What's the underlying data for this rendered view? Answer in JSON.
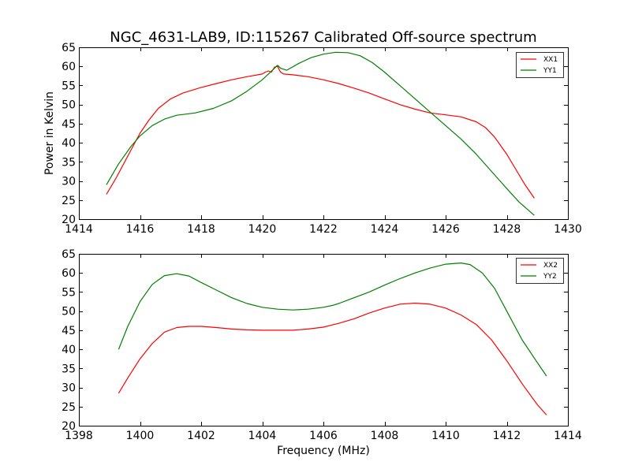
{
  "chart_data": [
    {
      "type": "line",
      "title": "NGC_4631-LAB9, ID:115267 Calibrated Off-source spectrum",
      "xlabel": "",
      "ylabel": "Power in Kelvin",
      "xlim": [
        1414,
        1430
      ],
      "ylim": [
        20,
        65
      ],
      "xticks": [
        1414,
        1416,
        1418,
        1420,
        1422,
        1424,
        1426,
        1428,
        1430
      ],
      "yticks": [
        20,
        25,
        30,
        35,
        40,
        45,
        50,
        55,
        60,
        65
      ],
      "legend_position": "top-right",
      "grid": false,
      "series": [
        {
          "name": "XX1",
          "color": "#ff0000",
          "x": [
            1414.9,
            1415.2,
            1415.5,
            1415.8,
            1416.0,
            1416.3,
            1416.6,
            1417.0,
            1417.4,
            1418.0,
            1418.5,
            1419.0,
            1419.5,
            1420.0,
            1420.1,
            1420.2,
            1420.3,
            1420.4,
            1420.5,
            1420.6,
            1420.7,
            1421.0,
            1421.5,
            1422.0,
            1422.5,
            1423.0,
            1423.5,
            1424.0,
            1424.5,
            1425.0,
            1425.5,
            1426.0,
            1426.5,
            1427.0,
            1427.3,
            1427.6,
            1428.0,
            1428.3,
            1428.6,
            1428.9
          ],
          "y": [
            26.5,
            30.5,
            35.0,
            39.5,
            42.5,
            46.0,
            49.0,
            51.5,
            53.0,
            54.5,
            55.5,
            56.5,
            57.3,
            58.0,
            58.5,
            58.8,
            58.5,
            59.8,
            60.0,
            58.5,
            58.0,
            57.8,
            57.3,
            56.5,
            55.5,
            54.3,
            53.0,
            51.5,
            50.0,
            48.8,
            47.8,
            47.3,
            46.8,
            45.5,
            44.0,
            41.5,
            37.0,
            33.0,
            29.0,
            25.5
          ]
        },
        {
          "name": "YY1",
          "color": "#008000",
          "x": [
            1414.9,
            1415.3,
            1415.7,
            1416.0,
            1416.4,
            1416.8,
            1417.2,
            1417.8,
            1418.4,
            1419.0,
            1419.5,
            1420.0,
            1420.2,
            1420.4,
            1420.5,
            1420.6,
            1420.8,
            1421.2,
            1421.6,
            1422.0,
            1422.4,
            1422.8,
            1423.2,
            1423.6,
            1424.0,
            1424.5,
            1425.0,
            1425.5,
            1426.0,
            1426.5,
            1427.0,
            1427.5,
            1428.0,
            1428.4,
            1428.9
          ],
          "y": [
            29.0,
            34.5,
            39.0,
            41.8,
            44.5,
            46.2,
            47.2,
            47.8,
            49.0,
            51.0,
            53.5,
            56.5,
            58.0,
            59.5,
            60.3,
            59.5,
            59.0,
            60.8,
            62.3,
            63.2,
            63.7,
            63.6,
            62.8,
            61.0,
            58.5,
            55.0,
            51.5,
            48.0,
            44.5,
            41.0,
            37.0,
            32.5,
            28.0,
            24.5,
            21.0
          ]
        }
      ]
    },
    {
      "type": "line",
      "title": "",
      "xlabel": "Frequency (MHz)",
      "ylabel": "",
      "xlim": [
        1398,
        1414
      ],
      "ylim": [
        20,
        65
      ],
      "xticks": [
        1398,
        1400,
        1402,
        1404,
        1406,
        1408,
        1410,
        1412,
        1414
      ],
      "yticks": [
        20,
        25,
        30,
        35,
        40,
        45,
        50,
        55,
        60,
        65
      ],
      "legend_position": "top-right",
      "grid": false,
      "series": [
        {
          "name": "XX2",
          "color": "#ff0000",
          "x": [
            1399.3,
            1399.6,
            1400.0,
            1400.4,
            1400.8,
            1401.2,
            1401.6,
            1402.0,
            1402.5,
            1403.0,
            1403.5,
            1404.0,
            1404.5,
            1405.0,
            1405.5,
            1406.0,
            1406.3,
            1406.5,
            1407.0,
            1407.5,
            1408.0,
            1408.5,
            1409.0,
            1409.5,
            1410.0,
            1410.5,
            1411.0,
            1411.5,
            1412.0,
            1412.5,
            1413.0,
            1413.3
          ],
          "y": [
            28.5,
            32.5,
            37.5,
            41.5,
            44.5,
            45.7,
            46.0,
            46.0,
            45.7,
            45.3,
            45.1,
            45.0,
            45.0,
            45.0,
            45.3,
            45.8,
            46.4,
            46.8,
            48.0,
            49.5,
            50.8,
            51.8,
            52.1,
            51.8,
            50.8,
            49.0,
            46.5,
            42.5,
            37.0,
            31.0,
            25.5,
            22.8
          ]
        },
        {
          "name": "YY2",
          "color": "#008000",
          "x": [
            1399.3,
            1399.6,
            1400.0,
            1400.4,
            1400.8,
            1401.2,
            1401.6,
            1402.0,
            1402.5,
            1403.0,
            1403.5,
            1404.0,
            1404.5,
            1405.0,
            1405.5,
            1406.0,
            1406.3,
            1406.5,
            1407.0,
            1407.5,
            1408.0,
            1408.5,
            1409.0,
            1409.5,
            1410.0,
            1410.5,
            1410.8,
            1411.2,
            1411.6,
            1412.0,
            1412.5,
            1413.0,
            1413.3
          ],
          "y": [
            40.0,
            46.0,
            52.5,
            57.0,
            59.3,
            59.8,
            59.2,
            57.5,
            55.5,
            53.5,
            52.0,
            51.0,
            50.5,
            50.3,
            50.5,
            51.0,
            51.5,
            52.0,
            53.5,
            55.0,
            56.8,
            58.5,
            60.0,
            61.3,
            62.3,
            62.6,
            62.2,
            60.0,
            56.0,
            50.0,
            42.5,
            36.5,
            33.0
          ]
        }
      ]
    }
  ]
}
